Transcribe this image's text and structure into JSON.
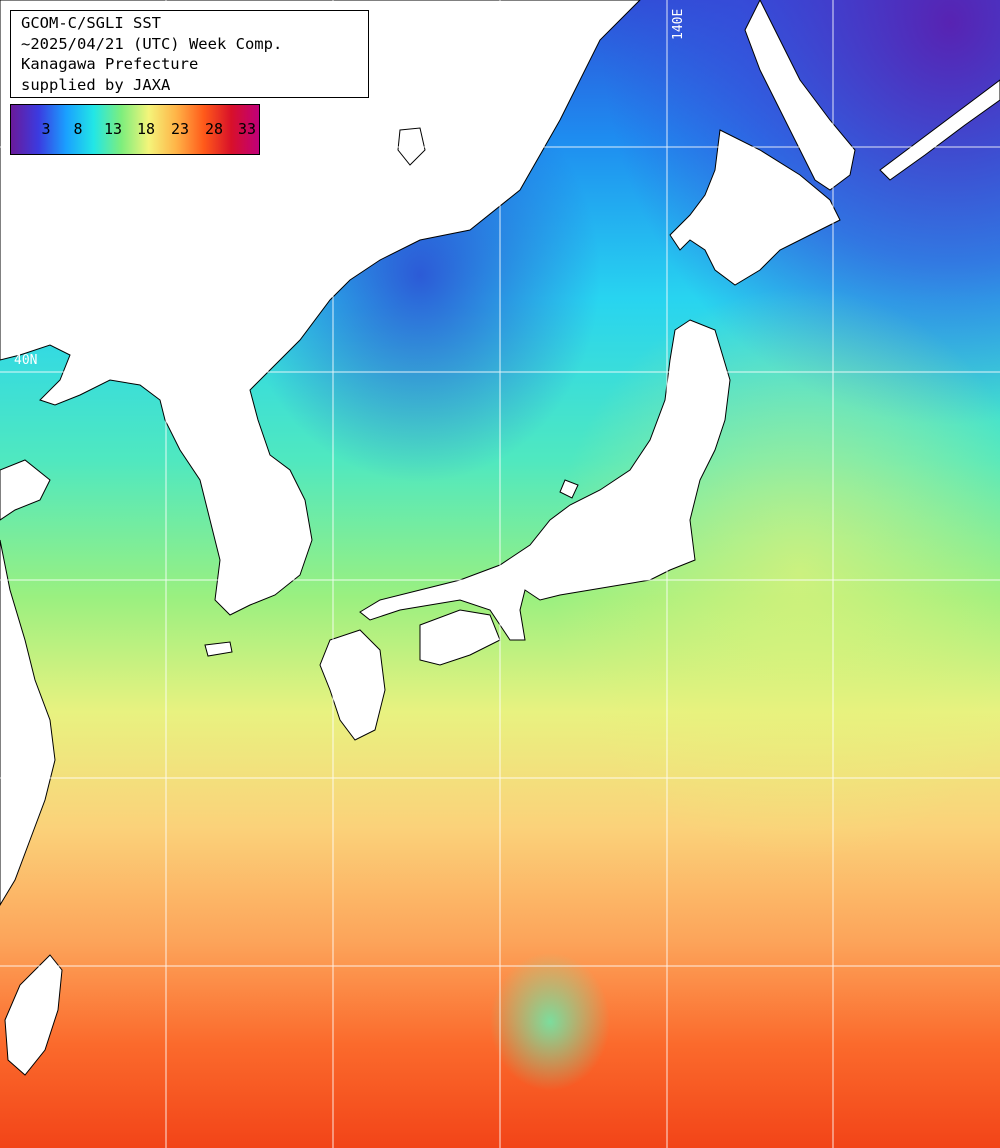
{
  "title": {
    "lines": [
      "GCOM-C/SGLI SST",
      "~2025/04/21 (UTC) Week Comp.",
      "Kanagawa Prefecture",
      "supplied by JAXA"
    ]
  },
  "legend": {
    "ticks": [
      "3",
      "8",
      "13",
      "18",
      "23",
      "28",
      "33"
    ],
    "colors": [
      "#6a1a9a",
      "#3b3be0",
      "#1aa0ff",
      "#22e6e6",
      "#7dee7d",
      "#f4f47a",
      "#ffb347",
      "#ff5a1a",
      "#d8102a",
      "#c0007a"
    ]
  },
  "grid": {
    "lon_label": "140E",
    "lat_label": "40N"
  },
  "colors": {
    "land": "#ffffff",
    "coast": "#000000",
    "grid": "#ffffff"
  }
}
